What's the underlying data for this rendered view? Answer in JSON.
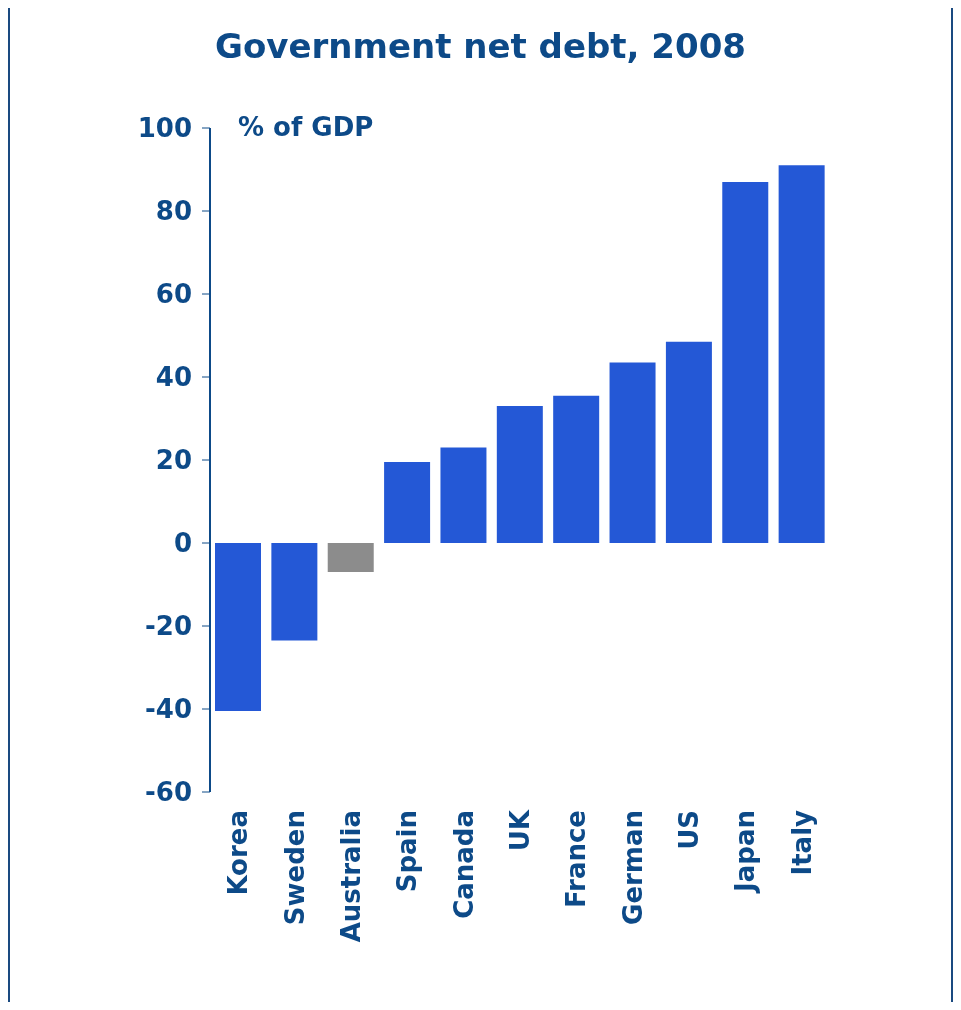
{
  "chart_data": {
    "type": "bar",
    "title": "Government net debt, 2008",
    "ylabel": "% of GDP",
    "categories": [
      "Korea",
      "Sweden",
      "Australia",
      "Spain",
      "Canada",
      "UK",
      "France",
      "German",
      "US",
      "Japan",
      "Italy"
    ],
    "values": [
      -40.5,
      -23.5,
      -7,
      19.5,
      23,
      33,
      35.5,
      43.5,
      48.5,
      87,
      91
    ],
    "colors": [
      "#2458d6",
      "#2458d6",
      "#8c8c8c",
      "#2458d6",
      "#2458d6",
      "#2458d6",
      "#2458d6",
      "#2458d6",
      "#2458d6",
      "#2458d6",
      "#2458d6"
    ],
    "ylim": [
      -60,
      100
    ],
    "yticks": [
      -60,
      -40,
      -20,
      0,
      20,
      40,
      60,
      80,
      100
    ],
    "grid": false
  }
}
